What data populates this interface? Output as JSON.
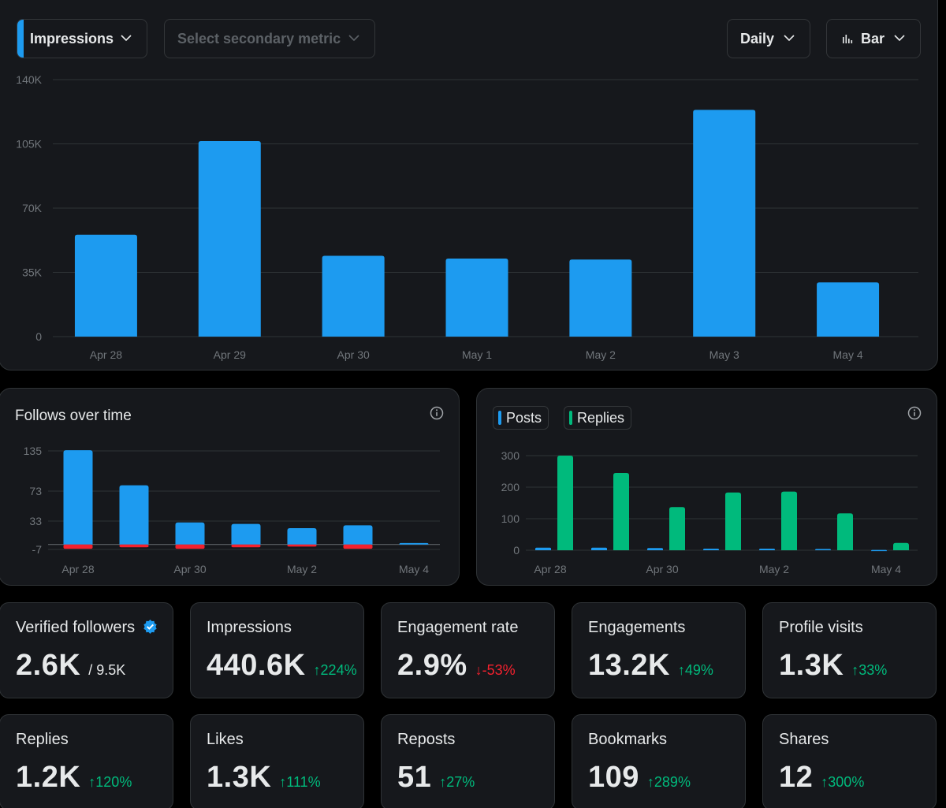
{
  "colors": {
    "impressions_blue": "#1d9bf0",
    "replies_green": "#00ba7c",
    "unfollow_red": "#f4212e",
    "grid": "#2f3336",
    "axis_text": "#71767b"
  },
  "toolbar": {
    "primary_metric": "Impressions",
    "secondary_metric_placeholder": "Select secondary metric",
    "interval": "Daily",
    "chart_type": "Bar",
    "chart_type_icon": "bar-chart-icon",
    "chevron_icon": "chevron-down-icon"
  },
  "follows_panel": {
    "title": "Follows over time",
    "info_icon": "info-icon"
  },
  "posts_panel": {
    "legend": [
      {
        "label": "Posts",
        "color": "#1d9bf0"
      },
      {
        "label": "Replies",
        "color": "#00ba7c"
      }
    ],
    "info_icon": "info-icon"
  },
  "chart_data": [
    {
      "type": "bar",
      "categories": [
        "Apr 28",
        "Apr 29",
        "Apr 30",
        "May 1",
        "May 2",
        "May 3",
        "May 4"
      ],
      "series": [
        {
          "name": "Impressions",
          "values": [
            55500,
            106500,
            44000,
            42500,
            42000,
            123500,
            29500
          ]
        }
      ],
      "yticks": [
        "0",
        "35K",
        "70K",
        "105K",
        "140K"
      ],
      "ylim": [
        0,
        140000
      ],
      "grid": true
    },
    {
      "type": "bar",
      "categories": [
        "Apr 28",
        "Apr 29",
        "Apr 30",
        "May 1",
        "May 2",
        "May 3",
        "May 4"
      ],
      "xtick_labels": [
        "Apr 28",
        "Apr 30",
        "May 2",
        "May 4"
      ],
      "series": [
        {
          "name": "Follows",
          "values": [
            136,
            82,
            31,
            29,
            23,
            27,
            2
          ]
        },
        {
          "name": "Unfollows",
          "values": [
            -6,
            -4,
            -6,
            -4,
            -3,
            -6,
            0
          ]
        }
      ],
      "yticks": [
        "-7",
        "33",
        "73",
        "135"
      ],
      "ytick_values": [
        -7,
        33,
        73,
        135
      ],
      "grid": true
    },
    {
      "type": "bar",
      "categories": [
        "Apr 28",
        "Apr 29",
        "Apr 30",
        "May 1",
        "May 2",
        "May 3",
        "May 4"
      ],
      "xtick_labels": [
        "Apr 28",
        "Apr 30",
        "May 2",
        "May 4"
      ],
      "series": [
        {
          "name": "Posts",
          "values": [
            8,
            8,
            7,
            5,
            5,
            4,
            1
          ]
        },
        {
          "name": "Replies",
          "values": [
            300,
            245,
            137,
            183,
            186,
            117,
            23
          ]
        }
      ],
      "yticks": [
        "0",
        "100",
        "200",
        "300"
      ],
      "ylim": [
        0,
        300
      ],
      "grid": true
    }
  ],
  "stats": [
    {
      "title": "Verified followers",
      "value": "2.6K",
      "sub": "/ 9.5K",
      "delta": "",
      "dir": "",
      "badge": "verified-badge-icon"
    },
    {
      "title": "Impressions",
      "value": "440.6K",
      "delta": "224%",
      "dir": "up"
    },
    {
      "title": "Engagement rate",
      "value": "2.9%",
      "delta": "-53%",
      "dir": "down"
    },
    {
      "title": "Engagements",
      "value": "13.2K",
      "delta": "49%",
      "dir": "up"
    },
    {
      "title": "Profile visits",
      "value": "1.3K",
      "delta": "33%",
      "dir": "up"
    },
    {
      "title": "Replies",
      "value": "1.2K",
      "delta": "120%",
      "dir": "up"
    },
    {
      "title": "Likes",
      "value": "1.3K",
      "delta": "111%",
      "dir": "up"
    },
    {
      "title": "Reposts",
      "value": "51",
      "delta": "27%",
      "dir": "up"
    },
    {
      "title": "Bookmarks",
      "value": "109",
      "delta": "289%",
      "dir": "up"
    },
    {
      "title": "Shares",
      "value": "12",
      "delta": "300%",
      "dir": "up"
    }
  ]
}
